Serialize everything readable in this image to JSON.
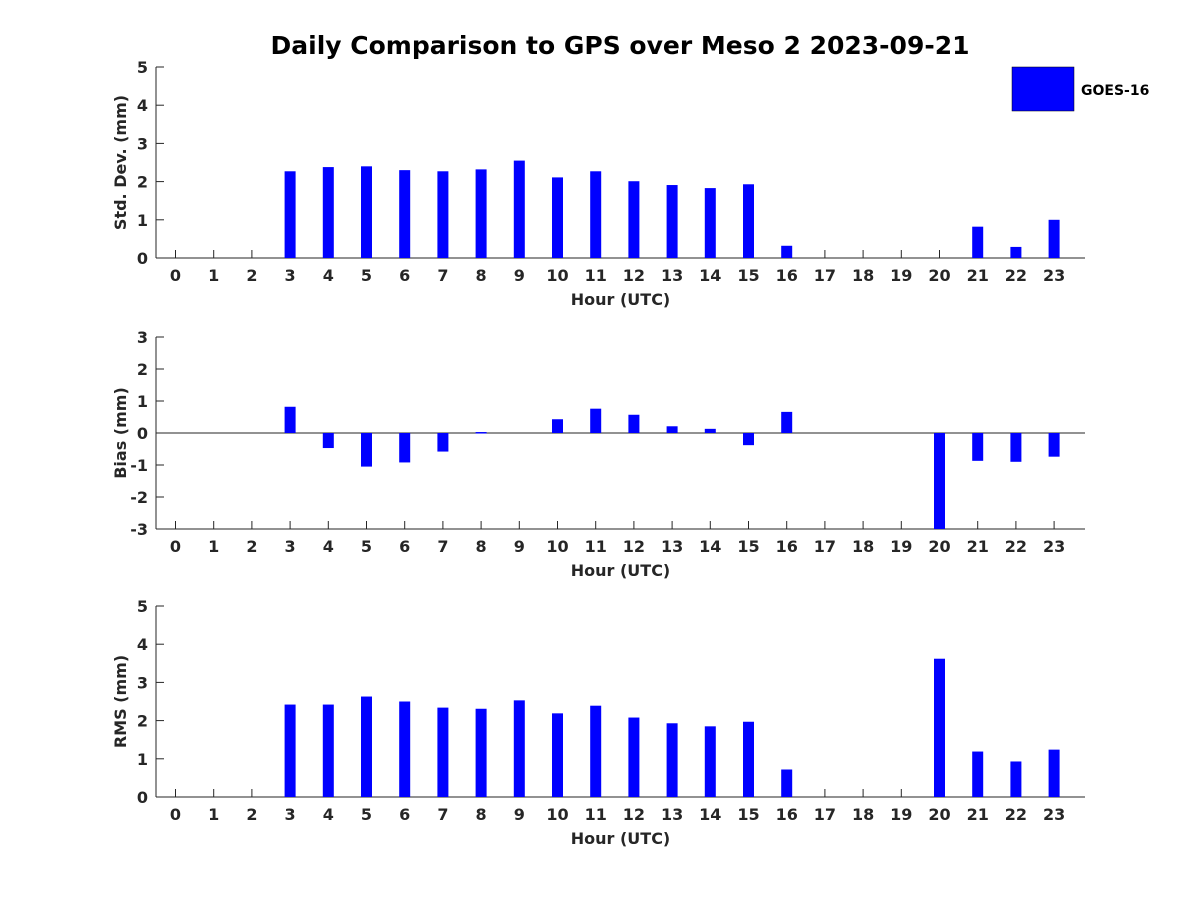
{
  "figure": {
    "title": "Daily Comparison to GPS over Meso 2 2023-09-21",
    "legend": {
      "label": "GOES-16",
      "color": "#0000ff",
      "placement": "top-right"
    }
  },
  "chart_data": [
    {
      "type": "bar",
      "ylabel": "Std. Dev. (mm)",
      "xlabel": "Hour (UTC)",
      "ylim": [
        0,
        5
      ],
      "yticks": [
        "0",
        "1",
        "2",
        "3",
        "4",
        "5"
      ],
      "categories": [
        "0",
        "1",
        "2",
        "3",
        "4",
        "5",
        "6",
        "7",
        "8",
        "9",
        "10",
        "11",
        "12",
        "13",
        "14",
        "15",
        "16",
        "17",
        "18",
        "19",
        "20",
        "21",
        "22",
        "23"
      ],
      "series": [
        {
          "name": "GOES-16",
          "values": [
            null,
            null,
            null,
            2.27,
            2.38,
            2.4,
            2.3,
            2.27,
            2.32,
            2.55,
            2.11,
            2.27,
            2.01,
            1.91,
            1.83,
            1.93,
            0.32,
            null,
            null,
            null,
            null,
            0.82,
            0.29,
            1.0
          ]
        }
      ]
    },
    {
      "type": "bar",
      "ylabel": "Bias (mm)",
      "xlabel": "Hour (UTC)",
      "ylim": [
        -3,
        3
      ],
      "yticks": [
        "-3",
        "-2",
        "-1",
        "0",
        "1",
        "2",
        "3"
      ],
      "categories": [
        "0",
        "1",
        "2",
        "3",
        "4",
        "5",
        "6",
        "7",
        "8",
        "9",
        "10",
        "11",
        "12",
        "13",
        "14",
        "15",
        "16",
        "17",
        "18",
        "19",
        "20",
        "21",
        "22",
        "23"
      ],
      "series": [
        {
          "name": "GOES-16",
          "values": [
            null,
            null,
            null,
            0.82,
            -0.47,
            -1.05,
            -0.92,
            -0.58,
            0.03,
            null,
            0.43,
            0.76,
            0.57,
            0.21,
            0.13,
            -0.38,
            0.66,
            null,
            null,
            null,
            -3.0,
            -0.87,
            -0.9,
            -0.74
          ]
        }
      ]
    },
    {
      "type": "bar",
      "ylabel": "RMS (mm)",
      "xlabel": "Hour (UTC)",
      "ylim": [
        0,
        5
      ],
      "yticks": [
        "0",
        "1",
        "2",
        "3",
        "4",
        "5"
      ],
      "categories": [
        "0",
        "1",
        "2",
        "3",
        "4",
        "5",
        "6",
        "7",
        "8",
        "9",
        "10",
        "11",
        "12",
        "13",
        "14",
        "15",
        "16",
        "17",
        "18",
        "19",
        "20",
        "21",
        "22",
        "23"
      ],
      "series": [
        {
          "name": "GOES-16",
          "values": [
            null,
            null,
            null,
            2.42,
            2.42,
            2.63,
            2.5,
            2.34,
            2.31,
            2.53,
            2.19,
            2.39,
            2.08,
            1.93,
            1.85,
            1.97,
            0.72,
            null,
            null,
            null,
            3.62,
            1.19,
            0.93,
            1.24
          ]
        }
      ]
    }
  ]
}
